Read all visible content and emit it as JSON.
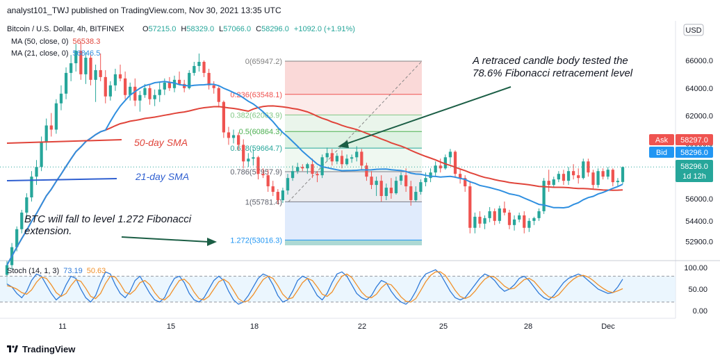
{
  "header": {
    "publisher": "analyst101_TWJ published on TradingView.com, Nov 30, 2021 13:35 UTC"
  },
  "legend": {
    "symbol": "Bitcoin / U.S. Dollar, 4h, BITFINEX",
    "open_label": "O",
    "open": "57215.0",
    "high_label": "H",
    "high": "58329.0",
    "low_label": "L",
    "low": "57066.0",
    "close_label": "C",
    "close": "58296.0",
    "change": "+1092.0 (+1.91%)",
    "ma50_label": "MA (50, close, 0)",
    "ma50_value": "56538.3",
    "ma21_label": "MA (21, close, 0)",
    "ma21_value": "56846.5"
  },
  "currency": "USD",
  "price_axis": {
    "ticks": [
      "66000.0",
      "64000.0",
      "62000.0",
      "60000.0",
      "58000.0",
      "56000.0",
      "54400.0",
      "52900.0"
    ],
    "ask_label": "Ask",
    "ask_value": "58297.0",
    "bid_label": "Bid",
    "bid_value": "58296.0",
    "last_value": "58296.0",
    "countdown": "1d 12h"
  },
  "time_axis": {
    "ticks": [
      "11",
      "15",
      "18",
      "22",
      "25",
      "28",
      "Dec"
    ]
  },
  "fibonacci": [
    {
      "label": "0(65947.2)",
      "price": 65947.2
    },
    {
      "label": "0.236(63548.1)",
      "price": 63548.1
    },
    {
      "label": "0.382(62063.9)",
      "price": 62063.9
    },
    {
      "label": "0.5(60864.3)",
      "price": 60864.3
    },
    {
      "label": "0.618(59664.7)",
      "price": 59664.7
    },
    {
      "label": "0.786(57957.9)",
      "price": 57957.9
    },
    {
      "label": "1(55781.4)",
      "price": 55781.4
    },
    {
      "label": "1.272(53016.3)",
      "price": 53016.3
    }
  ],
  "annotations": {
    "fib_test": "A retraced candle body tested the 78.6% Fibonacci retracement level",
    "sma50": "50-day SMA",
    "sma21": "21-day SMA",
    "btc_fall": "BTC will fall to  level 1.272  Fibonacci extension."
  },
  "stoch": {
    "label": "Stoch (14, 1, 3)",
    "k_value": "73.19",
    "d_value": "50.63",
    "ticks": [
      "100.00",
      "50.00",
      "0.00"
    ]
  },
  "footer": {
    "brand": "TradingView"
  },
  "colors": {
    "up": "#26a69a",
    "down": "#ef5350",
    "ma50": "#e0443a",
    "ma21": "#2f8fe0",
    "stoch_k": "#2f7ad8",
    "stoch_d": "#f0902a",
    "ask": "#ef5350",
    "bid": "#2196f3"
  },
  "chart_data": {
    "type": "candlestick",
    "timeframe": "4h",
    "y_range": [
      52000,
      67000
    ],
    "candles": [
      [
        50500,
        51500,
        49800,
        51200
      ],
      [
        51200,
        52800,
        50900,
        52500
      ],
      [
        52500,
        54000,
        52200,
        53800
      ],
      [
        53800,
        55200,
        53500,
        55000
      ],
      [
        55000,
        56400,
        54600,
        56100
      ],
      [
        56100,
        58000,
        55800,
        57600
      ],
      [
        57600,
        58800,
        57000,
        58300
      ],
      [
        58300,
        60500,
        58000,
        60100
      ],
      [
        60100,
        61800,
        59500,
        61300
      ],
      [
        61300,
        62200,
        60500,
        61000
      ],
      [
        61000,
        63200,
        60700,
        62900
      ],
      [
        62900,
        64200,
        62400,
        63600
      ],
      [
        63600,
        65500,
        63200,
        65100
      ],
      [
        65100,
        66400,
        64500,
        65800
      ],
      [
        65800,
        67200,
        65200,
        66700
      ],
      [
        66700,
        67300,
        64600,
        65000
      ],
      [
        65000,
        66600,
        64300,
        66200
      ],
      [
        66200,
        66500,
        64200,
        64600
      ],
      [
        64600,
        65700,
        63000,
        65300
      ],
      [
        65300,
        66500,
        64500,
        64800
      ],
      [
        64800,
        65300,
        62900,
        63400
      ],
      [
        63400,
        64500,
        63100,
        64200
      ],
      [
        64200,
        65400,
        63800,
        65000
      ],
      [
        65000,
        65700,
        64500,
        64700
      ],
      [
        64700,
        65200,
        63200,
        63500
      ],
      [
        63500,
        64400,
        63100,
        64100
      ],
      [
        64100,
        64700,
        62700,
        63100
      ],
      [
        63100,
        63800,
        62300,
        63500
      ],
      [
        63500,
        64300,
        63300,
        64000
      ],
      [
        64000,
        64300,
        62800,
        63200
      ],
      [
        63200,
        63900,
        62700,
        63500
      ],
      [
        63500,
        64400,
        63000,
        63900
      ],
      [
        63900,
        64700,
        63500,
        64400
      ],
      [
        64400,
        64800,
        63800,
        64000
      ],
      [
        64000,
        64900,
        63700,
        64600
      ],
      [
        64600,
        65200,
        64200,
        64300
      ],
      [
        64300,
        64600,
        63700,
        64000
      ],
      [
        64000,
        65300,
        63900,
        65100
      ],
      [
        65100,
        65900,
        64900,
        65600
      ],
      [
        65600,
        66500,
        65200,
        65900
      ],
      [
        65900,
        66000,
        64800,
        65100
      ],
      [
        65100,
        65400,
        63900,
        64200
      ],
      [
        64200,
        64500,
        63600,
        64000
      ],
      [
        64000,
        64200,
        62600,
        63000
      ],
      [
        63000,
        63100,
        60400,
        60800
      ],
      [
        60800,
        61200,
        59900,
        60400
      ],
      [
        60400,
        61000,
        60000,
        60600
      ],
      [
        60600,
        60800,
        59500,
        59900
      ],
      [
        59900,
        60300,
        58200,
        58700
      ],
      [
        58700,
        59300,
        58300,
        58900
      ],
      [
        58900,
        59600,
        58400,
        59000
      ],
      [
        59000,
        59100,
        57400,
        57800
      ],
      [
        57800,
        58200,
        57500,
        57700
      ],
      [
        57700,
        58100,
        56500,
        56900
      ],
      [
        56900,
        57300,
        56200,
        56500
      ],
      [
        56500,
        56700,
        55600,
        55900
      ],
      [
        55900,
        56800,
        55700,
        56600
      ],
      [
        56600,
        57800,
        56300,
        57500
      ],
      [
        57500,
        58400,
        57300,
        58000
      ],
      [
        58000,
        58600,
        57800,
        58300
      ],
      [
        58300,
        58500,
        58000,
        58200
      ],
      [
        58200,
        58600,
        57800,
        58500
      ],
      [
        58500,
        58900,
        57500,
        57800
      ],
      [
        57800,
        58000,
        57200,
        57700
      ],
      [
        57700,
        59200,
        57500,
        59000
      ],
      [
        59000,
        59700,
        58700,
        59300
      ],
      [
        59300,
        59600,
        58400,
        58700
      ],
      [
        58700,
        59300,
        58500,
        59100
      ],
      [
        59100,
        59500,
        58200,
        58500
      ],
      [
        58500,
        59200,
        58400,
        58900
      ],
      [
        58900,
        59200,
        58600,
        59000
      ],
      [
        59000,
        59800,
        58700,
        59400
      ],
      [
        59400,
        59600,
        58100,
        58400
      ],
      [
        58400,
        58600,
        57300,
        57600
      ],
      [
        57600,
        58000,
        56700,
        57000
      ],
      [
        57000,
        57600,
        56200,
        57300
      ],
      [
        57300,
        57700,
        55800,
        56200
      ],
      [
        56200,
        57100,
        55900,
        56800
      ],
      [
        56800,
        57500,
        56000,
        56400
      ],
      [
        56400,
        57600,
        56300,
        57300
      ],
      [
        57300,
        57900,
        57000,
        57700
      ],
      [
        57700,
        58200,
        56500,
        56900
      ],
      [
        56900,
        57300,
        55500,
        55900
      ],
      [
        55900,
        56900,
        55800,
        56500
      ],
      [
        56500,
        57400,
        56300,
        57200
      ],
      [
        57200,
        57900,
        56900,
        57500
      ],
      [
        57500,
        58200,
        57200,
        57900
      ],
      [
        57900,
        58700,
        57600,
        58400
      ],
      [
        58400,
        58900,
        57900,
        58200
      ],
      [
        58200,
        59200,
        58100,
        59000
      ],
      [
        59000,
        59600,
        58500,
        59400
      ],
      [
        59400,
        59500,
        57500,
        57800
      ],
      [
        57800,
        58200,
        57100,
        57500
      ],
      [
        57500,
        57700,
        56500,
        56900
      ],
      [
        56900,
        57300,
        53500,
        53900
      ],
      [
        53900,
        55000,
        53500,
        54700
      ],
      [
        54700,
        55100,
        53900,
        54200
      ],
      [
        54200,
        54800,
        53800,
        54600
      ],
      [
        54600,
        55400,
        54300,
        55100
      ],
      [
        55100,
        55300,
        54100,
        54400
      ],
      [
        54400,
        55500,
        54200,
        55300
      ],
      [
        55300,
        55800,
        54800,
        55000
      ],
      [
        55000,
        55200,
        53800,
        54100
      ],
      [
        54100,
        54800,
        53700,
        54500
      ],
      [
        54500,
        55000,
        54300,
        54800
      ],
      [
        54800,
        55100,
        53500,
        53900
      ],
      [
        53900,
        54600,
        53600,
        54400
      ],
      [
        54400,
        54700,
        54100,
        54600
      ],
      [
        54600,
        55300,
        54400,
        55100
      ],
      [
        55100,
        57500,
        54900,
        57300
      ],
      [
        57300,
        58100,
        56500,
        57000
      ],
      [
        57000,
        57600,
        56800,
        57400
      ],
      [
        57400,
        58000,
        57200,
        57800
      ],
      [
        57800,
        58100,
        57000,
        57300
      ],
      [
        57300,
        58300,
        57000,
        58000
      ],
      [
        58000,
        58500,
        57400,
        57700
      ],
      [
        57700,
        58200,
        57100,
        57500
      ],
      [
        57500,
        58900,
        57400,
        58700
      ],
      [
        58700,
        58900,
        57600,
        57900
      ],
      [
        57900,
        58100,
        56700,
        57000
      ],
      [
        57000,
        58200,
        56800,
        58000
      ],
      [
        58000,
        58200,
        57400,
        57600
      ],
      [
        57600,
        58300,
        57400,
        58100
      ],
      [
        58100,
        58200,
        56900,
        57200
      ],
      [
        57200,
        57500,
        56900,
        57300
      ],
      [
        57215,
        58329,
        57066,
        58296
      ]
    ],
    "fib_levels": [
      {
        "ratio": 0,
        "price": 65947.2
      },
      {
        "ratio": 0.236,
        "price": 63548.1
      },
      {
        "ratio": 0.382,
        "price": 62063.9
      },
      {
        "ratio": 0.5,
        "price": 60864.3
      },
      {
        "ratio": 0.618,
        "price": 59664.7
      },
      {
        "ratio": 0.786,
        "price": 57957.9
      },
      {
        "ratio": 1,
        "price": 55781.4
      },
      {
        "ratio": 1.272,
        "price": 53016.3
      }
    ],
    "stoch_k": [
      62,
      55,
      40,
      30,
      45,
      70,
      85,
      80,
      60,
      40,
      25,
      35,
      60,
      80,
      75,
      50,
      30,
      20,
      35,
      65,
      90,
      85,
      60,
      40,
      30,
      45,
      70,
      80,
      60,
      40,
      25,
      20,
      30,
      55,
      75,
      80,
      65,
      40,
      25,
      20,
      30,
      50,
      70,
      80,
      70,
      45,
      25,
      15,
      20,
      35,
      55,
      75,
      85,
      80,
      60,
      35,
      20,
      25,
      45,
      70,
      80,
      75,
      55,
      35,
      25,
      40,
      65,
      85,
      90,
      80,
      60,
      40,
      30,
      25,
      35,
      55,
      70,
      65,
      45,
      30,
      20,
      15,
      25,
      45,
      70,
      85,
      90,
      95,
      85,
      65,
      45,
      30,
      25,
      30,
      45,
      60,
      75,
      85,
      80,
      70,
      55,
      45,
      50,
      60,
      75,
      80,
      70,
      55,
      40,
      30,
      25,
      35,
      50,
      65,
      75,
      80,
      85,
      80,
      70,
      60,
      50,
      45,
      40,
      42,
      55,
      73
    ],
    "stoch_d": [
      58,
      55,
      50,
      42,
      38,
      48,
      66,
      78,
      75,
      60,
      42,
      33,
      40,
      58,
      72,
      68,
      52,
      33,
      28,
      40,
      63,
      80,
      78,
      62,
      43,
      38,
      48,
      65,
      70,
      60,
      42,
      28,
      25,
      35,
      53,
      70,
      73,
      62,
      43,
      28,
      25,
      33,
      50,
      67,
      73,
      65,
      47,
      28,
      20,
      23,
      37,
      55,
      72,
      80,
      75,
      58,
      38,
      27,
      30,
      47,
      65,
      75,
      70,
      55,
      38,
      33,
      43,
      63,
      80,
      85,
      77,
      60,
      43,
      32,
      30,
      38,
      53,
      63,
      60,
      47,
      32,
      22,
      20,
      28,
      47,
      67,
      82,
      90,
      90,
      82,
      65,
      47,
      33,
      28,
      33,
      45,
      60,
      73,
      80,
      78,
      68,
      57,
      50,
      52,
      62,
      72,
      75,
      68,
      55,
      42,
      32,
      30,
      37,
      50,
      63,
      73,
      80,
      82,
      78,
      70,
      60,
      52,
      45,
      42,
      46,
      51
    ]
  }
}
